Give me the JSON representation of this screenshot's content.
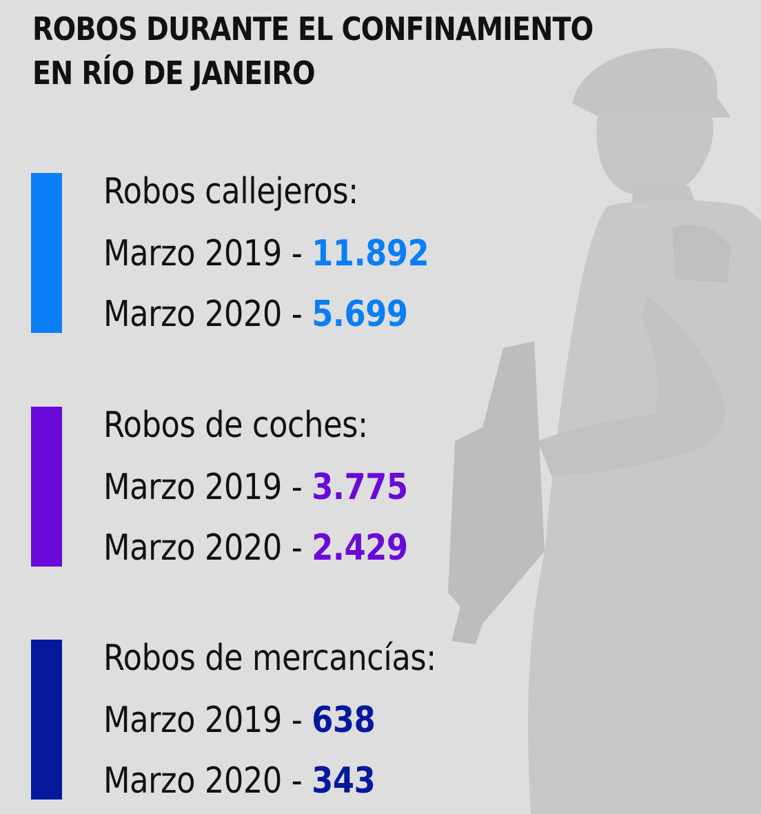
{
  "title": {
    "line1": "ROBOS DURANTE EL CONFINAMIENTO",
    "line2": "EN RÍO DE JANEIRO"
  },
  "sections": [
    {
      "heading": "Robos callejeros:",
      "color": "#0a7ef5",
      "rows": [
        {
          "label": "Marzo 2019 - ",
          "value": "11.892"
        },
        {
          "label": "Marzo 2020 - ",
          "value": "5.699"
        }
      ]
    },
    {
      "heading": "Robos de coches:",
      "color": "#6a0ad8",
      "rows": [
        {
          "label": "Marzo 2019 - ",
          "value": "3.775"
        },
        {
          "label": "Marzo 2020 - ",
          "value": "2.429"
        }
      ]
    },
    {
      "heading": "Robos de mercancías:",
      "color": "#04199c",
      "rows": [
        {
          "label": "Marzo 2019 - ",
          "value": "638"
        },
        {
          "label": "Marzo 2020 - ",
          "value": "343"
        }
      ]
    }
  ],
  "background": {
    "color": "#dedede",
    "icon": "police-officer-silhouette"
  }
}
